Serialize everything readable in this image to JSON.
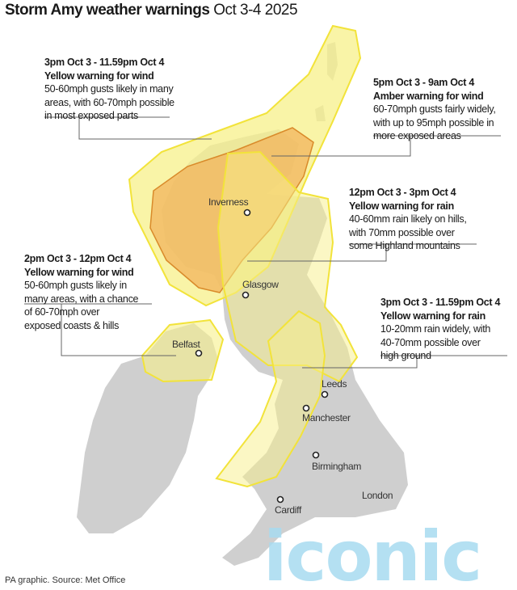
{
  "title": {
    "bold": "Storm Amy weather warnings",
    "regular": "Oct 3-4 2025"
  },
  "warnings": [
    {
      "when": "3pm Oct 3 - 11.59pm Oct 4",
      "what": "Yellow warning for wind",
      "desc": "50-60mph gusts likely in many\nareas, with 60-70mph possible\nin most exposed parts"
    },
    {
      "when": "5pm Oct 3 - 9am Oct 4",
      "what": "Amber warning for wind",
      "desc": "60-70mph gusts fairly widely,\nwith up to 95mph possible in\nmore exposed areas"
    },
    {
      "when": "12pm Oct 3 - 3pm Oct 4",
      "what": "Yellow warning for rain",
      "desc": "40-60mm rain likely on hills,\nwith 70mm possible over\nsome Highland mountains"
    },
    {
      "when": "2pm Oct 3 - 12pm Oct 4",
      "what": "Yellow warning for wind",
      "desc": "50-60mph gusts likely in\nmany areas, with a chance\nof 60-70mph over\nexposed coasts & hills"
    },
    {
      "when": "3pm Oct 3 - 11.59pm Oct 4",
      "what": "Yellow warning for rain",
      "desc": "10-20mm rain widely, with\n40-70mm possible over\nhigh ground"
    }
  ],
  "cities": [
    "Inverness",
    "Glasgow",
    "Belfast",
    "Leeds",
    "Manchester",
    "Birmingham",
    "Cardiff",
    "London"
  ],
  "source": "PA graphic. Source: Met Office",
  "watermark": "iconic",
  "colors": {
    "land": "#cfcfcf",
    "yellow": "#f7f08a",
    "yellow_stroke": "#f2e33a",
    "amber": "#f2b45c",
    "amber_stroke": "#d98a2a"
  }
}
